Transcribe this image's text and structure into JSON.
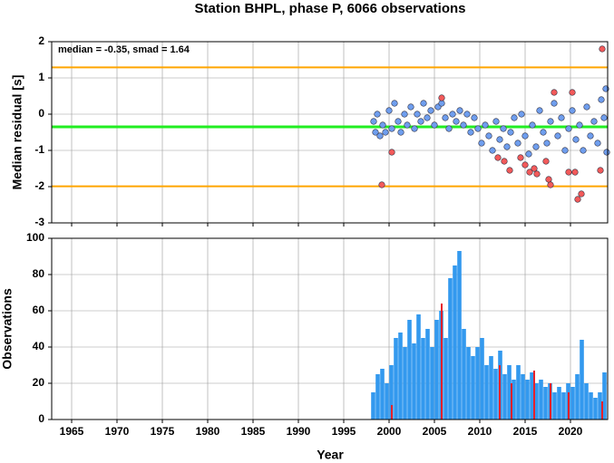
{
  "chart_data": [
    {
      "type": "scatter",
      "title": "Station BHPL, phase P, 6066 observations",
      "annotation": "median = -0.35, smad = 1.64",
      "ylabel": "Median residual [s]",
      "xlim": [
        1962.8,
        2024.1
      ],
      "xticks": [
        1965,
        1970,
        1975,
        1980,
        1985,
        1990,
        1995,
        2000,
        2005,
        2010,
        2015,
        2020
      ],
      "ylim": [
        -3,
        2
      ],
      "yticks": [
        -3,
        -2,
        -1,
        0,
        1,
        2
      ],
      "grid": true,
      "hlines": [
        {
          "value": -0.35,
          "color": "#22ee22"
        },
        {
          "value": 1.29,
          "color": "#ffa500"
        },
        {
          "value": -1.99,
          "color": "#ffa500"
        }
      ],
      "series": [
        {
          "color": "#6f9eee",
          "x": [
            1998.3,
            1998.5,
            1998.7,
            1999.0,
            1999.3,
            1999.6,
            2000.0,
            2000.3,
            2000.6,
            2001.0,
            2001.3,
            2001.7,
            2002.0,
            2002.4,
            2002.8,
            2003.1,
            2003.5,
            2003.8,
            2004.2,
            2004.6,
            2005.0,
            2005.4,
            2005.8,
            2006.2,
            2006.6,
            2007.0,
            2007.4,
            2007.8,
            2008.2,
            2008.6,
            2009.0,
            2009.4,
            2009.8,
            2010.2,
            2010.6,
            2011.0,
            2011.4,
            2011.8,
            2012.2,
            2012.6,
            2013.0,
            2013.4,
            2013.8,
            2014.2,
            2014.6,
            2015.0,
            2015.4,
            2015.8,
            2016.2,
            2016.6,
            2017.0,
            2017.4,
            2017.8,
            2018.2,
            2018.6,
            2019.0,
            2019.4,
            2019.8,
            2020.2,
            2020.6,
            2021.0,
            2021.4,
            2021.8,
            2022.2,
            2022.6,
            2023.0,
            2023.4,
            2023.7,
            2023.9,
            2024.0
          ],
          "values": [
            -0.2,
            -0.5,
            0.0,
            -0.6,
            -0.3,
            -0.5,
            0.1,
            -0.4,
            0.3,
            -0.2,
            -0.5,
            0.0,
            -0.3,
            0.2,
            -0.4,
            0.0,
            -0.2,
            0.3,
            -0.1,
            0.1,
            -0.3,
            0.2,
            0.3,
            -0.1,
            -0.4,
            0.0,
            -0.2,
            0.1,
            -0.3,
            0.0,
            -0.5,
            -0.1,
            -0.4,
            -0.8,
            -0.3,
            -0.6,
            -1.0,
            -0.2,
            -0.7,
            -0.4,
            -0.9,
            -0.5,
            -0.1,
            -0.8,
            0.0,
            -0.6,
            -1.1,
            -0.3,
            -0.9,
            0.1,
            -0.5,
            -0.8,
            -0.2,
            0.3,
            -0.6,
            -0.1,
            -1.0,
            -0.4,
            0.1,
            -0.7,
            -0.3,
            -1.0,
            0.2,
            -0.6,
            -0.2,
            -0.8,
            0.4,
            -0.1,
            0.7,
            -1.05
          ]
        },
        {
          "color": "#f25a5a",
          "x": [
            1999.2,
            2000.3,
            2005.8,
            2012.0,
            2012.7,
            2013.3,
            2014.5,
            2015.0,
            2015.5,
            2016.0,
            2016.3,
            2017.3,
            2017.6,
            2017.8,
            2018.2,
            2019.8,
            2020.2,
            2020.5,
            2020.8,
            2021.2,
            2023.3,
            2023.5
          ],
          "values": [
            -1.95,
            -1.05,
            0.45,
            -1.2,
            -1.3,
            -1.55,
            -1.2,
            -1.4,
            -1.6,
            -1.5,
            -1.65,
            -1.3,
            -1.8,
            -1.95,
            0.6,
            -1.6,
            0.6,
            -1.6,
            -2.35,
            -2.2,
            -1.55,
            1.8
          ]
        }
      ]
    },
    {
      "type": "bar",
      "xlabel": "Year",
      "ylabel": "Observations",
      "xlim": [
        1962.8,
        2024.1
      ],
      "xticks": [
        1965,
        1970,
        1975,
        1980,
        1985,
        1990,
        1995,
        2000,
        2005,
        2010,
        2015,
        2020
      ],
      "ylim": [
        0,
        100
      ],
      "yticks": [
        0,
        20,
        40,
        60,
        80,
        100
      ],
      "grid": true,
      "series": [
        {
          "color": "#3399ee",
          "x": [
            1998.25,
            1998.75,
            1999.25,
            1999.75,
            2000.25,
            2000.75,
            2001.25,
            2001.75,
            2002.25,
            2002.75,
            2003.25,
            2003.75,
            2004.25,
            2004.75,
            2005.25,
            2005.75,
            2006.25,
            2006.75,
            2007.25,
            2007.75,
            2008.25,
            2008.75,
            2009.25,
            2009.75,
            2010.25,
            2010.75,
            2011.25,
            2011.75,
            2012.25,
            2012.75,
            2013.25,
            2013.75,
            2014.25,
            2014.75,
            2015.25,
            2015.75,
            2016.25,
            2016.75,
            2017.25,
            2017.75,
            2018.25,
            2018.75,
            2019.25,
            2019.75,
            2020.25,
            2020.75,
            2021.25,
            2021.75,
            2022.25,
            2022.75,
            2023.25,
            2023.75
          ],
          "values": [
            15,
            25,
            28,
            20,
            30,
            45,
            48,
            40,
            55,
            42,
            58,
            45,
            50,
            40,
            55,
            60,
            45,
            78,
            85,
            93,
            50,
            40,
            35,
            40,
            45,
            30,
            35,
            28,
            38,
            25,
            30,
            22,
            30,
            25,
            22,
            26,
            20,
            22,
            18,
            20,
            15,
            18,
            15,
            20,
            18,
            25,
            44,
            20,
            15,
            12,
            15,
            26
          ]
        },
        {
          "color": "#e8202a",
          "x": [
            2000.3,
            2005.8,
            2012.2,
            2013.5,
            2016.0,
            2017.8,
            2019.8,
            2023.5
          ],
          "values": [
            8,
            64,
            30,
            20,
            27,
            20,
            15,
            10
          ]
        }
      ]
    }
  ]
}
